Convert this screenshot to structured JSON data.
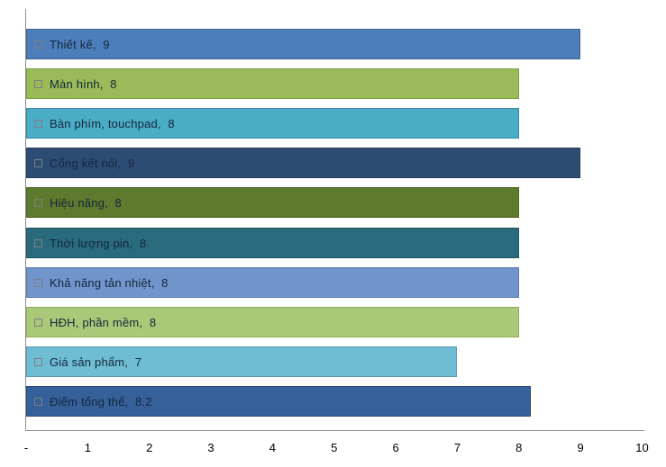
{
  "chart_data": {
    "type": "bar",
    "orientation": "horizontal",
    "title": "",
    "xlabel": "",
    "ylabel": "",
    "xlim": [
      0,
      10
    ],
    "grid": false,
    "legend": false,
    "background_color": "#FFFFFF",
    "axis_line_color": "#8F8F8F",
    "tick_text_color": "#000000",
    "bar_label_text_color": "#16263A",
    "legend_key_border_color": "#7F7F7F",
    "categories": [
      "Thiết kế",
      "Màn hình",
      "Bàn phím, touchpad",
      "Cổng kết nối",
      "Hiệu năng",
      "Thời lượng pin",
      "Khả năng tản nhiệt",
      "HĐH, phần mềm",
      "Giá sản phẩm",
      "Điểm tổng thể"
    ],
    "values": [
      9,
      8,
      8,
      9,
      8,
      8,
      8,
      8,
      7,
      8.2
    ],
    "bars": [
      {
        "category": "Thiết kế",
        "value": 9,
        "display": "Thiết kế,  9",
        "fill": "#4C7EBB",
        "border": "#3A6394"
      },
      {
        "category": "Màn hình",
        "value": 8,
        "display": "Màn hình,  8",
        "fill": "#9ABB58",
        "border": "#7E9C42"
      },
      {
        "category": "Bàn phím, touchpad",
        "value": 8,
        "display": "Bàn phím, touchpad,  8",
        "fill": "#4BACC6",
        "border": "#3889A3"
      },
      {
        "category": "Cổng kết nối",
        "value": 9,
        "display": "Cổng kết nối,  9",
        "fill": "#2D4C74",
        "border": "#233C5C"
      },
      {
        "category": "Hiệu năng",
        "value": 8,
        "display": "Hiệu năng,  8",
        "fill": "#5E7A2E",
        "border": "#4C6325"
      },
      {
        "category": "Thời lượng pin",
        "value": 8,
        "display": "Thời lượng pin,  8",
        "fill": "#2A6A7D",
        "border": "#215461"
      },
      {
        "category": "Khả năng tản nhiệt",
        "value": 8,
        "display": "Khả năng tản nhiệt,  8",
        "fill": "#7195CA",
        "border": "#5A7BAC"
      },
      {
        "category": "HĐH, phần mềm",
        "value": 8,
        "display": "HĐH, phần mềm,  8",
        "fill": "#A9C878",
        "border": "#8FAE59"
      },
      {
        "category": "Giá sản phẩm",
        "value": 7,
        "display": "Giá sản phẩm,  7",
        "fill": "#6EBDD3",
        "border": "#579DB1"
      },
      {
        "category": "Điểm tổng thể",
        "value": 8.2,
        "display": "Điểm tổng thể,  8.2",
        "fill": "#36609A",
        "border": "#284B7A"
      }
    ],
    "x_ticks": [
      {
        "value": 0,
        "label": "-"
      },
      {
        "value": 1,
        "label": "1"
      },
      {
        "value": 2,
        "label": "2"
      },
      {
        "value": 3,
        "label": "3"
      },
      {
        "value": 4,
        "label": "4"
      },
      {
        "value": 5,
        "label": "5"
      },
      {
        "value": 6,
        "label": "6"
      },
      {
        "value": 7,
        "label": "7"
      },
      {
        "value": 8,
        "label": "8"
      },
      {
        "value": 9,
        "label": "9"
      },
      {
        "value": 10,
        "label": "10"
      }
    ]
  }
}
